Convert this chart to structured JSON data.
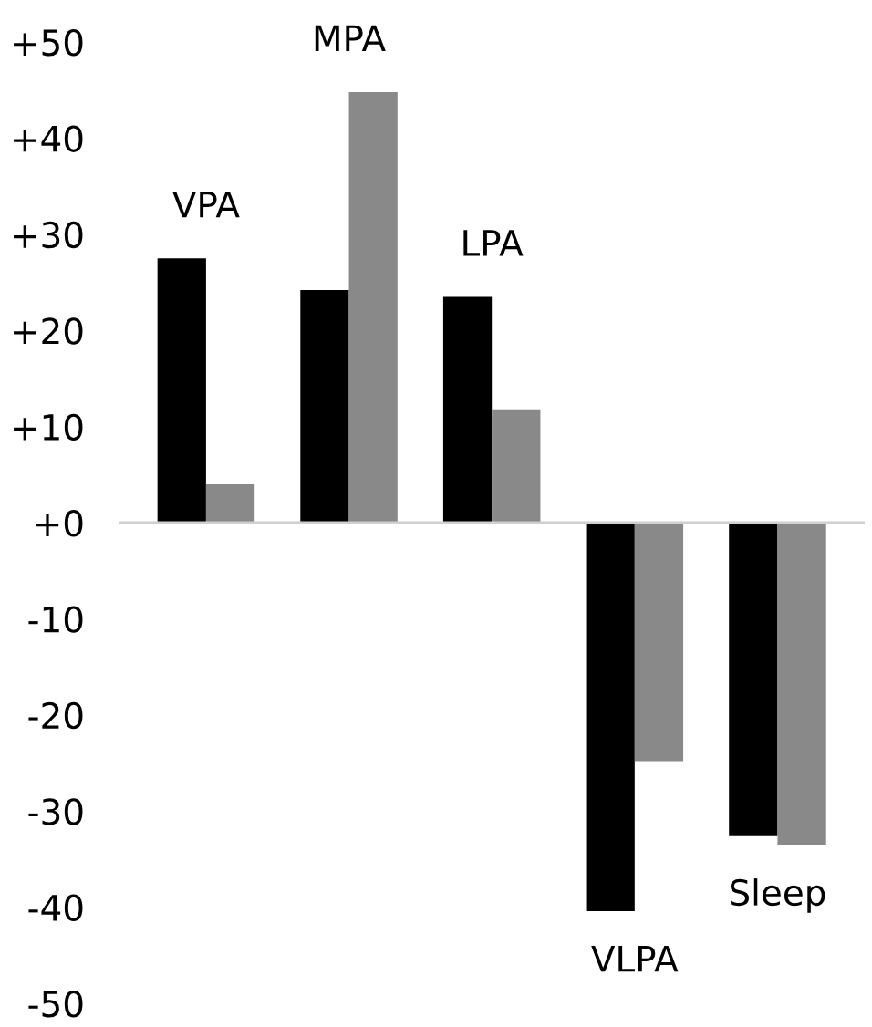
{
  "chart_data": {
    "type": "bar",
    "categories": [
      "VPA",
      "MPA",
      "LPA",
      "VLPA",
      "Sleep"
    ],
    "series": [
      {
        "color": "#000000",
        "values": [
          27.5,
          24.2,
          23.5,
          -40.4,
          -32.6
        ]
      },
      {
        "color": "#898989",
        "values": [
          4.0,
          44.8,
          11.8,
          -24.8,
          -33.5
        ]
      }
    ],
    "ylim": [
      -50,
      50
    ],
    "yticks": [
      {
        "value": 50,
        "label": "+50"
      },
      {
        "value": 40,
        "label": "+40"
      },
      {
        "value": 30,
        "label": "+30"
      },
      {
        "value": 20,
        "label": "+20"
      },
      {
        "value": 10,
        "label": "+10"
      },
      {
        "value": 0,
        "label": "+0"
      },
      -10,
      -20,
      -30,
      -40,
      -50
    ],
    "legend": false,
    "tick_labels": "y"
  }
}
